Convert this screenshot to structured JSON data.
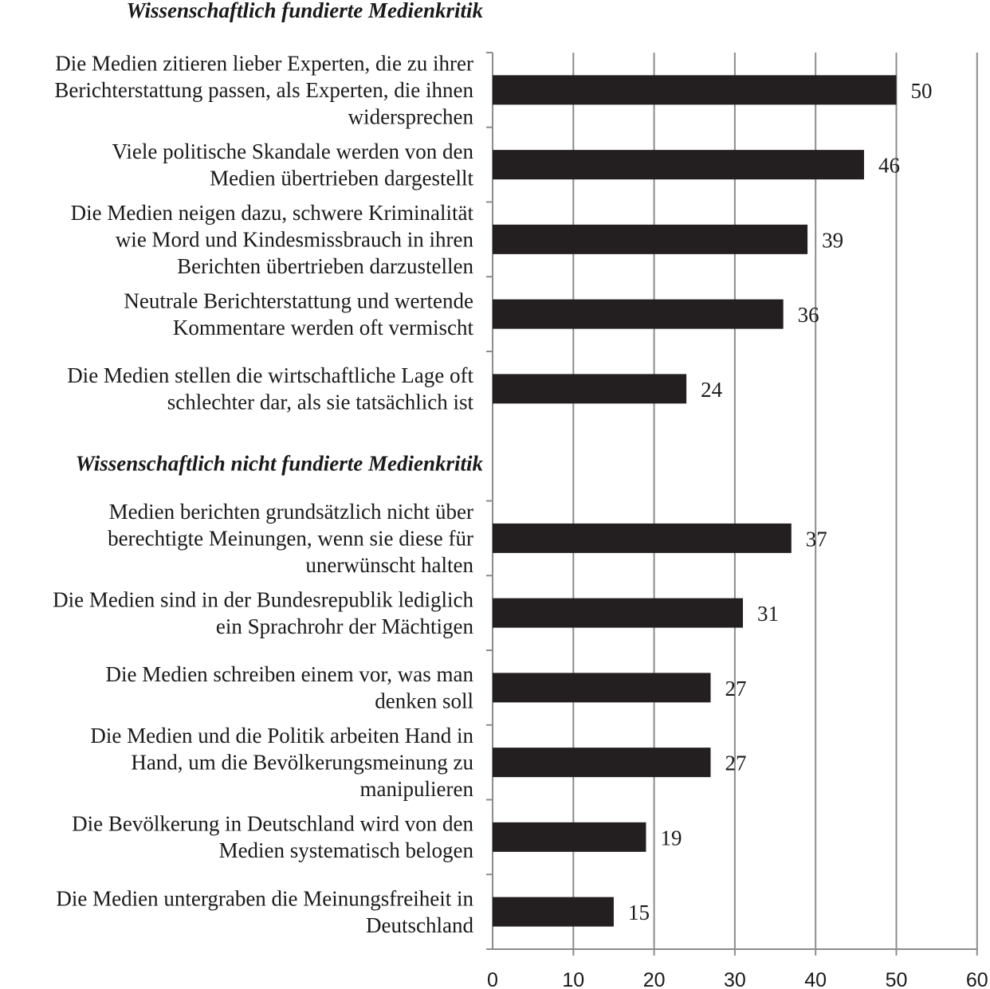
{
  "chart_data": {
    "type": "bar",
    "orientation": "horizontal",
    "groups": [
      {
        "heading": "Wissenschaftlich fundierte Medienkritik",
        "items": [
          {
            "label": [
              "Die Medien zitieren lieber Experten, die zu ihrer",
              "Berichterstattung passen, als Experten, die ihnen",
              "widersprechen"
            ],
            "value": 50
          },
          {
            "label": [
              "Viele politische Skandale werden von den",
              "Medien übertrieben dargestellt"
            ],
            "value": 46
          },
          {
            "label": [
              "Die Medien neigen dazu, schwere Kriminalität",
              "wie Mord und Kindesmissbrauch in ihren",
              "Berichten übertrieben darzustellen"
            ],
            "value": 39
          },
          {
            "label": [
              "Neutrale Berichterstattung und wertende",
              "Kommentare werden oft vermischt"
            ],
            "value": 36
          },
          {
            "label": [
              "Die Medien stellen die wirtschaftliche Lage oft",
              "schlechter dar, als sie tatsächlich ist"
            ],
            "value": 24
          }
        ]
      },
      {
        "heading": "Wissenschaftlich nicht fundierte Medienkritik",
        "items": [
          {
            "label": [
              "Medien berichten grundsätzlich nicht über",
              "berechtigte Meinungen, wenn sie diese für",
              "unerwünscht halten"
            ],
            "value": 37
          },
          {
            "label": [
              "Die Medien sind in der Bundesrepublik lediglich",
              "ein Sprachrohr der Mächtigen"
            ],
            "value": 31
          },
          {
            "label": [
              "Die Medien schreiben einem vor, was man",
              "denken soll"
            ],
            "value": 27
          },
          {
            "label": [
              "Die Medien und die Politik arbeiten Hand in",
              "Hand, um die Bevölkerungsmeinung zu",
              "manipulieren"
            ],
            "value": 27
          },
          {
            "label": [
              "Die Bevölkerung in Deutschland wird von den",
              "Medien systematisch belogen"
            ],
            "value": 19
          },
          {
            "label": [
              "Die Medien untergraben die Meinungsfreiheit in",
              "Deutschland"
            ],
            "value": 15
          }
        ]
      }
    ],
    "xlim": [
      0,
      60
    ],
    "xticks": [
      "0",
      "10",
      "20",
      "30",
      "40",
      "50",
      "60"
    ],
    "grid": true,
    "bar_color": "#231f20",
    "grid_color": "#8c8c8c"
  }
}
